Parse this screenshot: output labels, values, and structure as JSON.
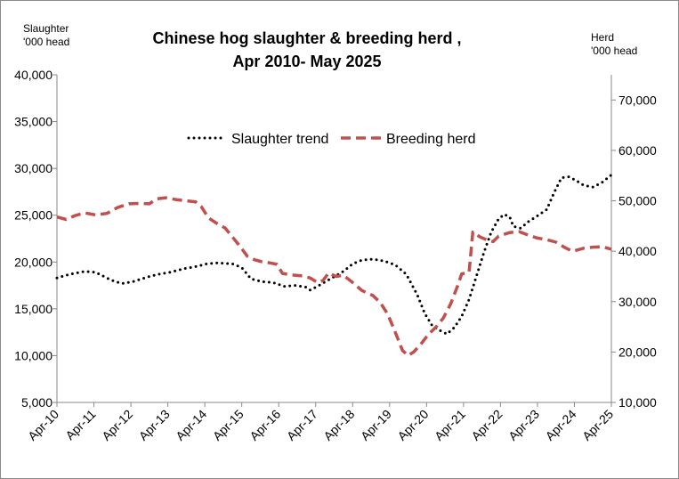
{
  "chart_data": {
    "type": "line",
    "title_line1": "Chinese hog slaughter & breeding herd ,",
    "title_line2": "Apr 2010- May 2025",
    "left_axis_label": [
      "Slaughter",
      "'000 head"
    ],
    "right_axis_label": [
      "Herd",
      "'000 head"
    ],
    "x_ticks": [
      "Apr-10",
      "Apr-11",
      "Apr-12",
      "Apr-13",
      "Apr-14",
      "Apr-15",
      "Apr-16",
      "Apr-17",
      "Apr-18",
      "Apr-19",
      "Apr-20",
      "Apr-21",
      "Apr-22",
      "Apr-23",
      "Apr-24",
      "Apr-25"
    ],
    "y_left": {
      "min": 5000,
      "max": 40000,
      "step": 5000,
      "ticks": [
        "5,000",
        "10,000",
        "15,000",
        "20,000",
        "25,000",
        "30,000",
        "35,000",
        "40,000"
      ]
    },
    "y_right": {
      "min": 10000,
      "max": 75000,
      "ticks": [
        "10,000",
        "20,000",
        "30,000",
        "40,000",
        "50,000",
        "60,000",
        "70,000"
      ],
      "tick_values": [
        10000,
        20000,
        30000,
        40000,
        50000,
        60000,
        70000
      ]
    },
    "legend_position": "top-center",
    "series": [
      {
        "name": "Slaughter trend",
        "axis": "left",
        "color": "#000000",
        "style": "dotted",
        "points": [
          [
            2010.25,
            18300
          ],
          [
            2010.6,
            18700
          ],
          [
            2011.0,
            19000
          ],
          [
            2011.3,
            18900
          ],
          [
            2011.7,
            18100
          ],
          [
            2012.0,
            17700
          ],
          [
            2012.3,
            17900
          ],
          [
            2012.7,
            18400
          ],
          [
            2013.0,
            18700
          ],
          [
            2013.3,
            18900
          ],
          [
            2013.7,
            19300
          ],
          [
            2014.0,
            19500
          ],
          [
            2014.3,
            19800
          ],
          [
            2014.6,
            19900
          ],
          [
            2015.0,
            19800
          ],
          [
            2015.25,
            19400
          ],
          [
            2015.5,
            18200
          ],
          [
            2015.8,
            17900
          ],
          [
            2016.1,
            17800
          ],
          [
            2016.4,
            17400
          ],
          [
            2016.7,
            17500
          ],
          [
            2017.0,
            17300
          ],
          [
            2017.1,
            17000
          ],
          [
            2017.3,
            17400
          ],
          [
            2017.6,
            18100
          ],
          [
            2018.0,
            19000
          ],
          [
            2018.25,
            19800
          ],
          [
            2018.5,
            20200
          ],
          [
            2018.8,
            20300
          ],
          [
            2019.1,
            20100
          ],
          [
            2019.4,
            19700
          ],
          [
            2019.7,
            18700
          ],
          [
            2020.0,
            16500
          ],
          [
            2020.2,
            14500
          ],
          [
            2020.4,
            13200
          ],
          [
            2020.6,
            12700
          ],
          [
            2020.8,
            12300
          ],
          [
            2021.0,
            13000
          ],
          [
            2021.2,
            14200
          ],
          [
            2021.4,
            16000
          ],
          [
            2021.6,
            18500
          ],
          [
            2021.8,
            21000
          ],
          [
            2022.0,
            23200
          ],
          [
            2022.2,
            24600
          ],
          [
            2022.35,
            25100
          ],
          [
            2022.5,
            24800
          ],
          [
            2022.6,
            23800
          ],
          [
            2022.8,
            23600
          ],
          [
            2023.0,
            24300
          ],
          [
            2023.2,
            24800
          ],
          [
            2023.5,
            25600
          ],
          [
            2023.7,
            27400
          ],
          [
            2023.9,
            29000
          ],
          [
            2024.1,
            29100
          ],
          [
            2024.3,
            28700
          ],
          [
            2024.5,
            28200
          ],
          [
            2024.75,
            28000
          ],
          [
            2025.0,
            28500
          ],
          [
            2025.25,
            29300
          ]
        ]
      },
      {
        "name": "Breeding herd",
        "axis": "right",
        "color": "#c0504d",
        "style": "dashed",
        "points": [
          [
            2010.25,
            46800
          ],
          [
            2010.5,
            46300
          ],
          [
            2010.75,
            47100
          ],
          [
            2011.0,
            47600
          ],
          [
            2011.3,
            47200
          ],
          [
            2011.6,
            47500
          ],
          [
            2011.9,
            48700
          ],
          [
            2012.2,
            49400
          ],
          [
            2012.5,
            49500
          ],
          [
            2012.75,
            49400
          ],
          [
            2012.95,
            50400
          ],
          [
            2013.2,
            50600
          ],
          [
            2013.5,
            50200
          ],
          [
            2013.75,
            50000
          ],
          [
            2014.0,
            49800
          ],
          [
            2014.15,
            48900
          ],
          [
            2014.35,
            46600
          ],
          [
            2014.6,
            45400
          ],
          [
            2014.8,
            44600
          ],
          [
            2015.0,
            42800
          ],
          [
            2015.2,
            41000
          ],
          [
            2015.4,
            39000
          ],
          [
            2015.6,
            38300
          ],
          [
            2015.8,
            37900
          ],
          [
            2016.0,
            37700
          ],
          [
            2016.2,
            37400
          ],
          [
            2016.35,
            35600
          ],
          [
            2016.6,
            35300
          ],
          [
            2016.9,
            35100
          ],
          [
            2017.1,
            34700
          ],
          [
            2017.3,
            33800
          ],
          [
            2017.45,
            34200
          ],
          [
            2017.6,
            35700
          ],
          [
            2017.8,
            35000
          ],
          [
            2018.0,
            35200
          ],
          [
            2018.2,
            34100
          ],
          [
            2018.5,
            32200
          ],
          [
            2018.8,
            31200
          ],
          [
            2019.0,
            29800
          ],
          [
            2019.2,
            27500
          ],
          [
            2019.4,
            24000
          ],
          [
            2019.6,
            20300
          ],
          [
            2019.75,
            19300
          ],
          [
            2019.9,
            20000
          ],
          [
            2020.1,
            21600
          ],
          [
            2020.3,
            23500
          ],
          [
            2020.5,
            24900
          ],
          [
            2020.7,
            26700
          ],
          [
            2020.9,
            29500
          ],
          [
            2021.1,
            33300
          ],
          [
            2021.2,
            35500
          ],
          [
            2021.4,
            35800
          ],
          [
            2021.5,
            43800
          ],
          [
            2021.7,
            42800
          ],
          [
            2021.9,
            42200
          ],
          [
            2022.05,
            41900
          ],
          [
            2022.2,
            43000
          ],
          [
            2022.5,
            43700
          ],
          [
            2022.75,
            43900
          ],
          [
            2023.0,
            43200
          ],
          [
            2023.25,
            42600
          ],
          [
            2023.5,
            42300
          ],
          [
            2023.75,
            41800
          ],
          [
            2024.0,
            40700
          ],
          [
            2024.2,
            40000
          ],
          [
            2024.5,
            40600
          ],
          [
            2024.75,
            40800
          ],
          [
            2025.0,
            40900
          ],
          [
            2025.25,
            40400
          ]
        ]
      }
    ]
  }
}
